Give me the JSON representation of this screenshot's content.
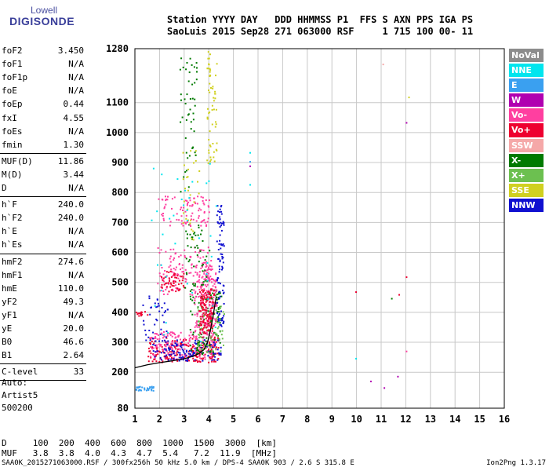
{
  "logo": {
    "line1": "Lowell",
    "line2": "DIGISONDE"
  },
  "header": {
    "line1": "Station YYYY DAY   DDD HHMMSS P1  FFS S AXN PPS IGA PS",
    "line2": "SaoLuis 2015 Sep28 271 063000 RSF     1 715 100 00- 11"
  },
  "params": {
    "group1": [
      {
        "k": "foF2",
        "v": "3.450"
      },
      {
        "k": "foF1",
        "v": "N/A"
      },
      {
        "k": "foF1p",
        "v": "N/A"
      },
      {
        "k": "foE",
        "v": "N/A"
      },
      {
        "k": "foEp",
        "v": "0.44"
      },
      {
        "k": "fxI",
        "v": "4.55"
      },
      {
        "k": "foEs",
        "v": "N/A"
      },
      {
        "k": "fmin",
        "v": "1.30"
      }
    ],
    "group2": [
      {
        "k": "MUF(D)",
        "v": "11.86"
      },
      {
        "k": "M(D)",
        "v": "3.44"
      },
      {
        "k": "D",
        "v": "N/A"
      }
    ],
    "group3": [
      {
        "k": "h`F",
        "v": "240.0"
      },
      {
        "k": "h`F2",
        "v": "240.0"
      },
      {
        "k": "h`E",
        "v": "N/A"
      },
      {
        "k": "h`Es",
        "v": "N/A"
      }
    ],
    "group4": [
      {
        "k": "hmF2",
        "v": "274.6"
      },
      {
        "k": "hmF1",
        "v": "N/A"
      },
      {
        "k": "hmE",
        "v": "110.0"
      },
      {
        "k": "yF2",
        "v": "49.3"
      },
      {
        "k": "yF1",
        "v": "N/A"
      },
      {
        "k": "yE",
        "v": "20.0"
      },
      {
        "k": "B0",
        "v": "46.6"
      },
      {
        "k": "B1",
        "v": "2.64"
      }
    ],
    "group5": [
      {
        "k": "C-level",
        "v": "33"
      }
    ]
  },
  "auto": {
    "line1": "Auto:",
    "line2": "Artist5",
    "line3": "500200"
  },
  "legend": [
    {
      "label": "NoVal",
      "color": "#8c8c8c"
    },
    {
      "label": "NNE",
      "color": "#00e5ee"
    },
    {
      "label": "E",
      "color": "#3aa0f0"
    },
    {
      "label": "W",
      "color": "#b000b0"
    },
    {
      "label": "Vo-",
      "color": "#ff3fa0"
    },
    {
      "label": "Vo+",
      "color": "#ee0030"
    },
    {
      "label": "SSW",
      "color": "#f5a8a8"
    },
    {
      "label": "X-",
      "color": "#007a00"
    },
    {
      "label": "X+",
      "color": "#6cc050"
    },
    {
      "label": "SSE",
      "color": "#d0d020"
    },
    {
      "label": "NNW",
      "color": "#1010d0"
    }
  ],
  "dmuf": {
    "line1": "D     100  200  400  600  800  1000  1500  3000  [km]",
    "line2": "MUF   3.8  3.8  4.0  4.3  4.7  5.4   7.2  11.9  [MHz]"
  },
  "footer": {
    "left": "SAA0K_2015271063000.RSF / 300fx256h 50 kHz 5.0 km / DPS-4 SAA0K 903 / 2.6 S 315.8 E",
    "right": "Ion2Png 1.3.17"
  },
  "chart_data": {
    "type": "scatter",
    "xlim": [
      1,
      16
    ],
    "ylim": [
      80,
      1280
    ],
    "x_ticks": [
      1,
      2,
      3,
      4,
      5,
      6,
      7,
      8,
      9,
      10,
      11,
      12,
      13,
      14,
      15,
      16
    ],
    "y_ticks": [
      80,
      200,
      300,
      400,
      500,
      600,
      700,
      800,
      900,
      1000,
      1100,
      1280
    ],
    "grid": true,
    "trace_curve": {
      "x": [
        1.0,
        1.5,
        2.0,
        2.5,
        3.0,
        3.3,
        3.6,
        3.8,
        3.95,
        4.05,
        4.15,
        4.22,
        4.3
      ],
      "y": [
        215,
        225,
        232,
        238,
        245,
        252,
        262,
        275,
        300,
        335,
        375,
        410,
        450
      ]
    },
    "clusters": [
      {
        "color": "#ee0030",
        "xr": [
          1.5,
          4.4
        ],
        "yr": [
          235,
          320
        ],
        "n": 220
      },
      {
        "color": "#ff3fa0",
        "xr": [
          1.6,
          4.3
        ],
        "yr": [
          245,
          340
        ],
        "n": 180
      },
      {
        "color": "#1010d0",
        "xr": [
          1.7,
          4.5
        ],
        "yr": [
          240,
          310
        ],
        "n": 120
      },
      {
        "color": "#007a00",
        "xr": [
          3.2,
          4.5
        ],
        "yr": [
          260,
          480
        ],
        "n": 120
      },
      {
        "color": "#6cc050",
        "xr": [
          3.5,
          4.6
        ],
        "yr": [
          270,
          430
        ],
        "n": 80
      },
      {
        "color": "#ff3fa0",
        "xr": [
          3.4,
          4.3
        ],
        "yr": [
          320,
          560
        ],
        "n": 180
      },
      {
        "color": "#ee0030",
        "xr": [
          3.6,
          4.2
        ],
        "yr": [
          330,
          480
        ],
        "n": 120
      },
      {
        "color": "#1010d0",
        "xr": [
          4.3,
          4.6
        ],
        "yr": [
          340,
          760
        ],
        "n": 90
      },
      {
        "color": "#ff3fa0",
        "xr": [
          1.9,
          4.1
        ],
        "yr": [
          460,
          620
        ],
        "n": 130
      },
      {
        "color": "#ee0030",
        "xr": [
          2.0,
          3.0
        ],
        "yr": [
          470,
          540
        ],
        "n": 50
      },
      {
        "color": "#007a00",
        "xr": [
          3.0,
          4.0
        ],
        "yr": [
          480,
          700
        ],
        "n": 50
      },
      {
        "color": "#ff3fa0",
        "xr": [
          1.9,
          4.0
        ],
        "yr": [
          690,
          790
        ],
        "n": 90
      },
      {
        "color": "#d0d020",
        "xr": [
          3.9,
          4.3
        ],
        "yr": [
          900,
          1280
        ],
        "n": 60
      },
      {
        "color": "#d0d020",
        "xr": [
          2.9,
          3.6
        ],
        "yr": [
          600,
          950
        ],
        "n": 30
      },
      {
        "color": "#007a00",
        "xr": [
          2.8,
          3.5
        ],
        "yr": [
          800,
          1260
        ],
        "n": 50
      },
      {
        "color": "#3aa0f0",
        "xr": [
          1.0,
          1.8
        ],
        "yr": [
          140,
          155
        ],
        "n": 30
      },
      {
        "color": "#ee0030",
        "xr": [
          1.0,
          1.5
        ],
        "yr": [
          390,
          405
        ],
        "n": 15
      },
      {
        "color": "#1010d0",
        "xr": [
          1.3,
          2.3
        ],
        "yr": [
          300,
          460
        ],
        "n": 40
      },
      {
        "color": "#00e5ee",
        "xr": [
          1.5,
          4.3
        ],
        "yr": [
          300,
          900
        ],
        "n": 40
      }
    ],
    "outliers": [
      {
        "x": 5.65,
        "y": 935,
        "c": "#00e5ee"
      },
      {
        "x": 5.65,
        "y": 905,
        "c": "#3aa0f0"
      },
      {
        "x": 5.65,
        "y": 890,
        "c": "#b000b0"
      },
      {
        "x": 5.65,
        "y": 828,
        "c": "#00e5ee"
      },
      {
        "x": 9.95,
        "y": 470,
        "c": "#ee0030"
      },
      {
        "x": 9.95,
        "y": 248,
        "c": "#00e5ee"
      },
      {
        "x": 10.55,
        "y": 172,
        "c": "#b000b0"
      },
      {
        "x": 11.05,
        "y": 1230,
        "c": "#f5a8a8"
      },
      {
        "x": 11.1,
        "y": 150,
        "c": "#b000b0"
      },
      {
        "x": 11.4,
        "y": 448,
        "c": "#007a00"
      },
      {
        "x": 11.7,
        "y": 461,
        "c": "#ee0030"
      },
      {
        "x": 11.65,
        "y": 188,
        "c": "#b000b0"
      },
      {
        "x": 12.0,
        "y": 1035,
        "c": "#b000b0"
      },
      {
        "x": 12.1,
        "y": 1120,
        "c": "#d0d020"
      },
      {
        "x": 12.0,
        "y": 520,
        "c": "#ee0030"
      },
      {
        "x": 12.0,
        "y": 272,
        "c": "#ff3fa0"
      }
    ]
  }
}
